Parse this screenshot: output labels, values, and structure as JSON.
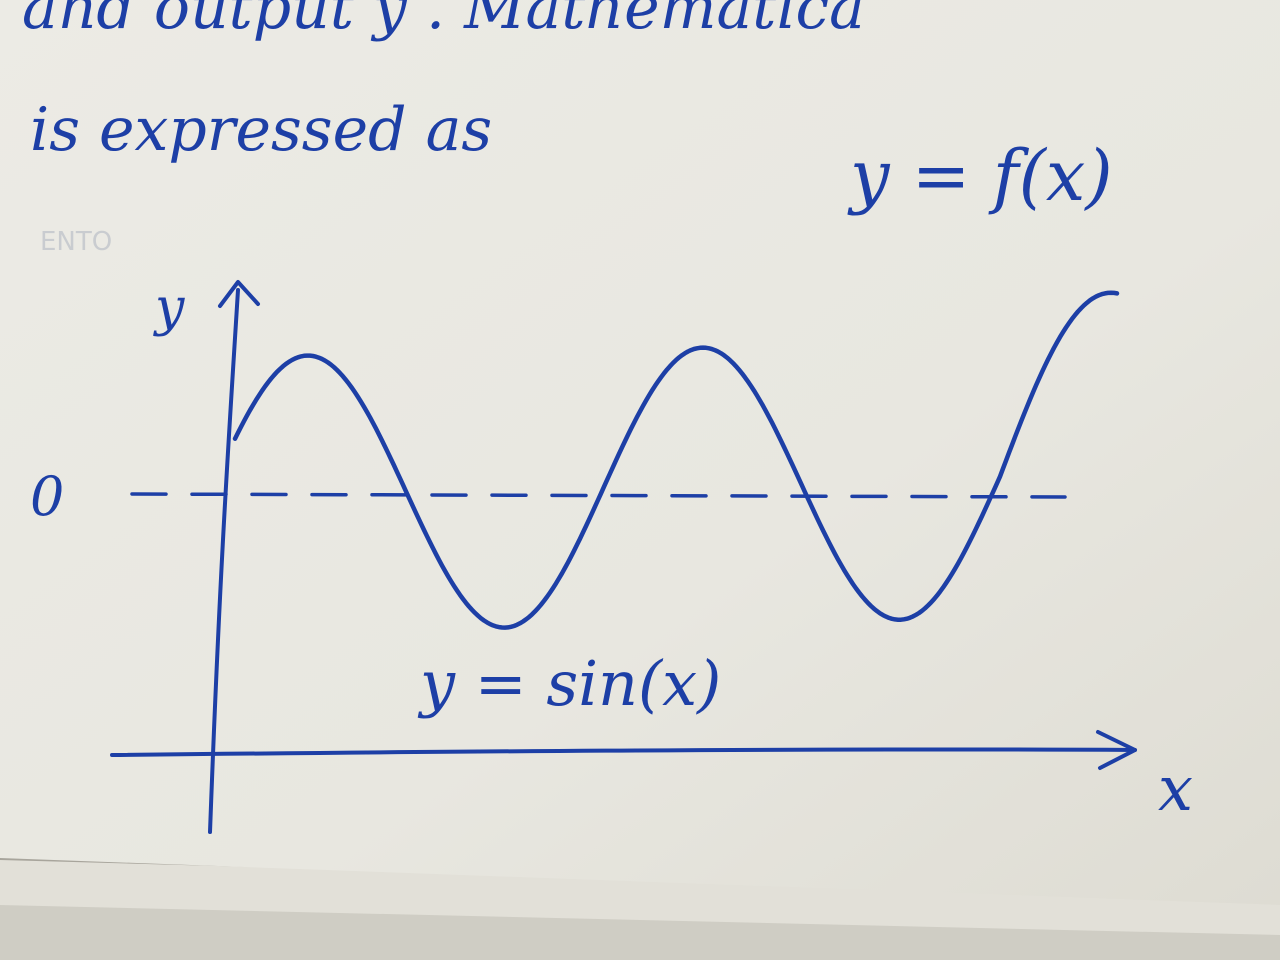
{
  "photo": {
    "subject": "handwritten notebook page",
    "ink_color": "#1d3fa6",
    "paper_color": "#eceae3"
  },
  "text": {
    "line1": "and output y . Mathematica",
    "line2": "is expressed as",
    "formula": "y = f(x)"
  },
  "chart_data": {
    "type": "line",
    "function": "y = sin(x)",
    "label": "y = sin(x)",
    "xlabel": "x",
    "ylabel": "y",
    "origin_label": "0",
    "grid": false,
    "ylim": [
      -1.2,
      1.2
    ]
  }
}
